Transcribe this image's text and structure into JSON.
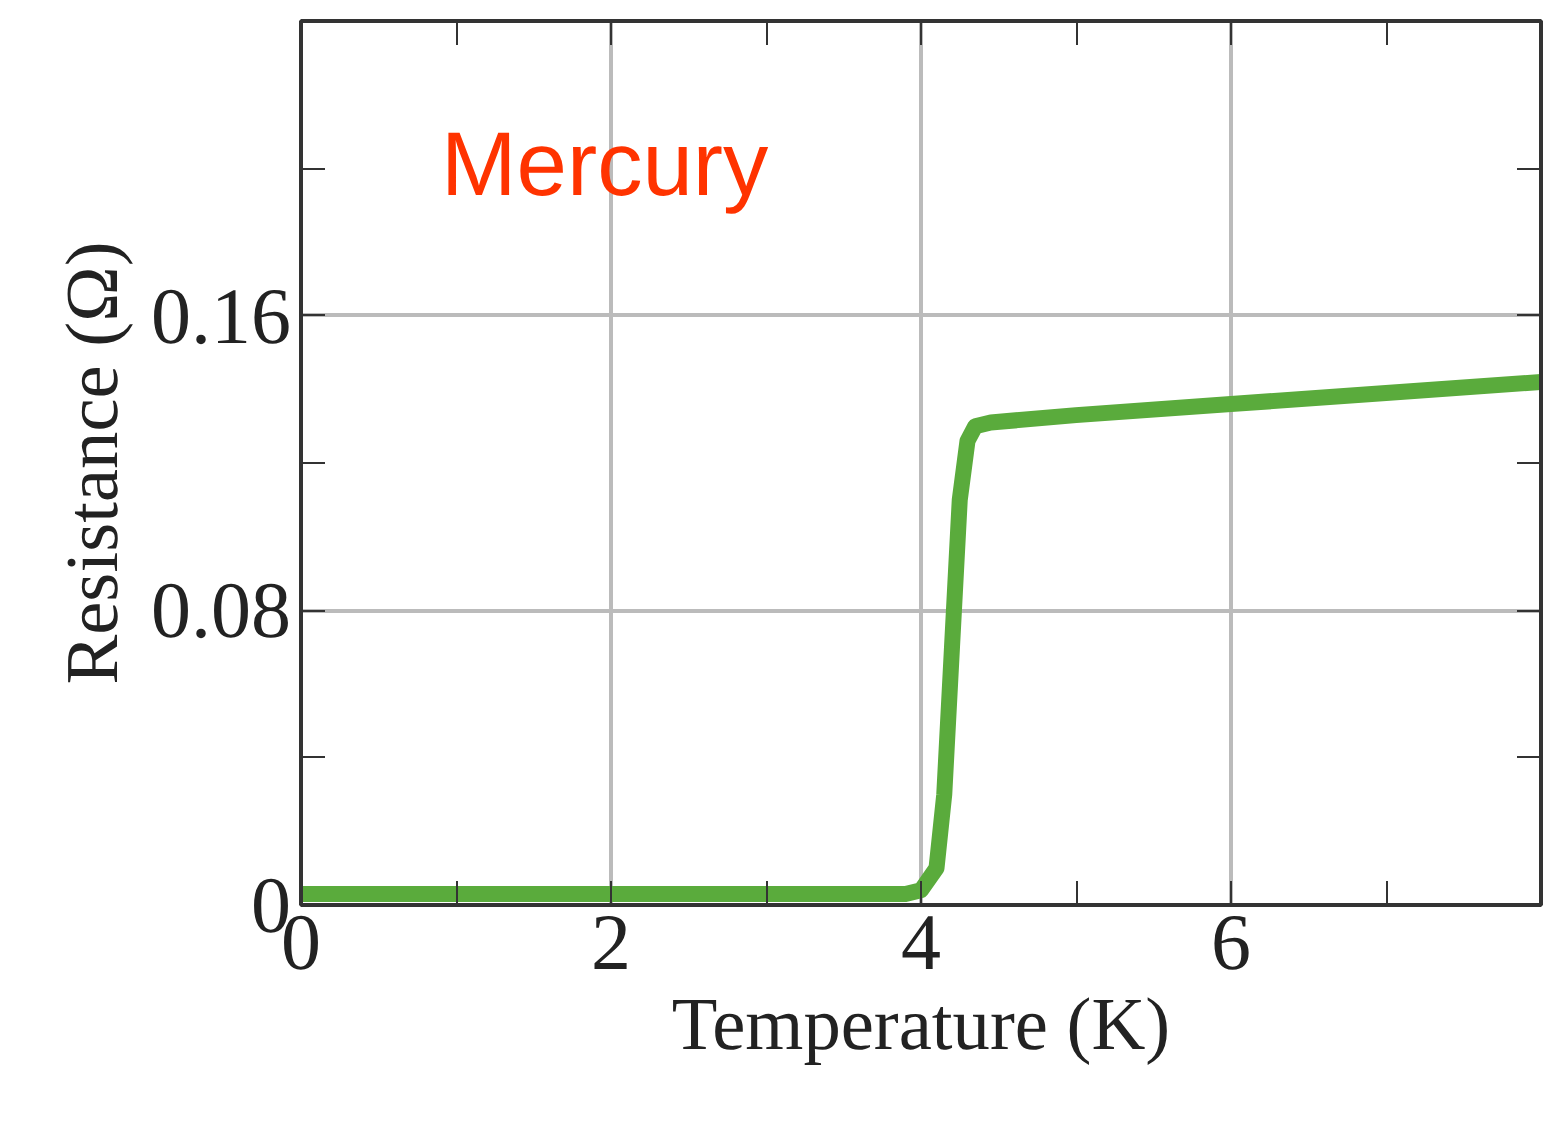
{
  "chart_data": {
    "type": "line",
    "xlabel": "Temperature (K)",
    "ylabel": "Resistance (Ω)",
    "annotations": [
      "Mercury"
    ],
    "x": [
      0,
      1,
      2,
      3,
      3.9,
      4.0,
      4.1,
      4.15,
      4.2,
      4.25,
      4.3,
      4.35,
      4.45,
      5,
      6,
      7,
      8
    ],
    "series": [
      {
        "color": "#5aab3c",
        "values": [
          0.003,
          0.003,
          0.003,
          0.003,
          0.003,
          0.004,
          0.01,
          0.03,
          0.07,
          0.11,
          0.126,
          0.13,
          0.131,
          0.133,
          0.136,
          0.139,
          0.142
        ]
      }
    ],
    "xlim": [
      0,
      8
    ],
    "xticks": [
      0,
      {
        "value": 1,
        "label": null
      },
      2,
      {
        "value": 3,
        "label": null
      },
      4,
      {
        "value": 5,
        "label": null
      },
      6,
      {
        "value": 7,
        "label": null
      }
    ],
    "ylim": [
      0,
      0.24
    ],
    "yticks": [
      0,
      {
        "value": 0.04,
        "label": null
      },
      0.08,
      {
        "value": 0.12,
        "label": null
      },
      0.16,
      {
        "value": 0.2,
        "label": null
      }
    ],
    "grid": "labelled",
    "marker": "none",
    "line_style": "solid"
  }
}
